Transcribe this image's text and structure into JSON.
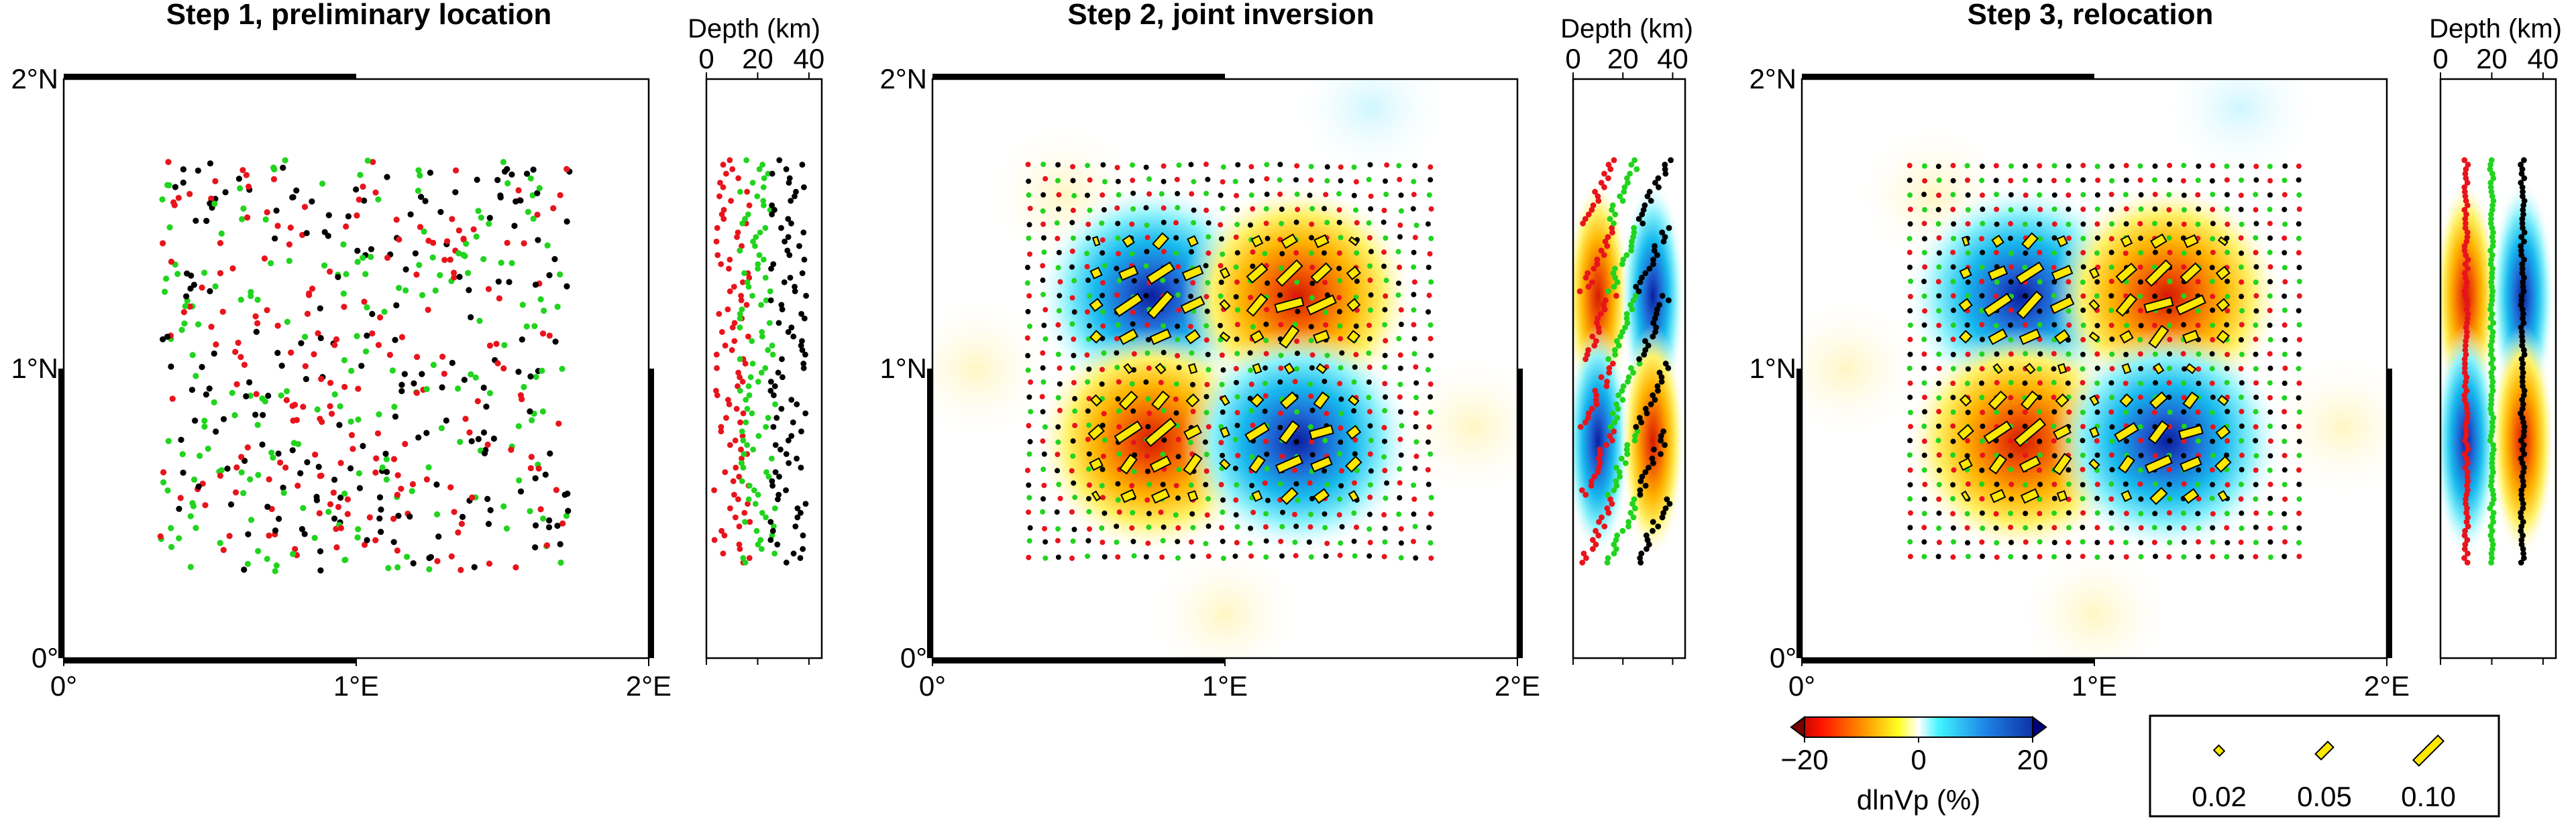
{
  "chart_data": [
    {
      "type": "scatter",
      "title": "Step 1, preliminary location",
      "map": {
        "x_ticks": [
          "0°",
          "1°E",
          "2°E"
        ],
        "y_ticks": [
          "0°",
          "1°N",
          "2°N"
        ],
        "xlim": [
          0,
          2
        ],
        "ylim": [
          0,
          2
        ],
        "point_colors": [
          "#e8141c",
          "#21d41e",
          "#000000"
        ],
        "event_extent": {
          "lon": [
            0.33,
            1.73
          ],
          "lat": [
            0.3,
            1.72
          ]
        },
        "pattern": "scattered (preliminary, perturbed locations)"
      },
      "depth_panel": {
        "title": "Depth (km)",
        "ticks": [
          "0",
          "20",
          "40"
        ],
        "xlim": [
          0,
          45
        ],
        "depth_groups_km": [
          {
            "color": "#e8141c",
            "depth": 10
          },
          {
            "color": "#21d41e",
            "depth": 20
          },
          {
            "color": "#000000",
            "depth": 32
          }
        ]
      }
    },
    {
      "type": "heatmap",
      "title": "Step 2, joint inversion",
      "map": {
        "x_ticks": [
          "0°",
          "1°E",
          "2°E"
        ],
        "y_ticks": [
          "0°",
          "1°N",
          "2°N"
        ],
        "xlim": [
          0,
          2
        ],
        "ylim": [
          0,
          2
        ],
        "anomalies_dlnVp_percent": [
          {
            "lon": 0.75,
            "lat": 1.25,
            "value": 20
          },
          {
            "lon": 1.25,
            "lat": 1.25,
            "value": -20
          },
          {
            "lon": 0.75,
            "lat": 0.75,
            "value": -20
          },
          {
            "lon": 1.25,
            "lat": 0.75,
            "value": 20
          }
        ],
        "event_grid": {
          "lon": [
            0.33,
            1.7
          ],
          "lat": [
            0.35,
            1.7
          ],
          "pattern": "regular grid, slightly perturbed"
        },
        "anisotropy_bars": "yellow bars with black outline inside anomaly regions"
      },
      "depth_panel": {
        "title": "Depth (km)",
        "ticks": [
          "0",
          "20",
          "40"
        ],
        "xlim": [
          0,
          45
        ],
        "depth_groups_km": [
          {
            "color": "#e8141c",
            "depth": 10
          },
          {
            "color": "#21d41e",
            "depth": 20
          },
          {
            "color": "#000000",
            "depth": 32
          }
        ]
      }
    },
    {
      "type": "heatmap",
      "title": "Step 3, relocation",
      "map": {
        "x_ticks": [
          "0°",
          "1°E",
          "2°E"
        ],
        "y_ticks": [
          "0°",
          "1°N",
          "2°N"
        ],
        "xlim": [
          0,
          2
        ],
        "ylim": [
          0,
          2
        ],
        "anomalies_dlnVp_percent": [
          {
            "lon": 0.75,
            "lat": 1.25,
            "value": 20
          },
          {
            "lon": 1.25,
            "lat": 1.25,
            "value": -20
          },
          {
            "lon": 0.75,
            "lat": 0.75,
            "value": -20
          },
          {
            "lon": 1.25,
            "lat": 0.75,
            "value": 20
          }
        ],
        "event_grid": {
          "lon": [
            0.37,
            1.7
          ],
          "lat": [
            0.35,
            1.7
          ],
          "pattern": "regular grid"
        },
        "anisotropy_bars": "yellow bars with black outline inside anomaly regions"
      },
      "depth_panel": {
        "title": "Depth (km)",
        "ticks": [
          "0",
          "20",
          "40"
        ],
        "xlim": [
          0,
          45
        ],
        "depth_groups_km": [
          {
            "color": "#e8141c",
            "depth": 10
          },
          {
            "color": "#21d41e",
            "depth": 20
          },
          {
            "color": "#000000",
            "depth": 32
          }
        ]
      }
    }
  ],
  "colorbar": {
    "label": "dlnVp (%)",
    "ticks": [
      "−20",
      "0",
      "20"
    ],
    "range": [
      -20,
      20
    ],
    "colors": [
      "#7a0000",
      "#ff0000",
      "#ff8c00",
      "#ffff00",
      "#ffffff",
      "#00ffff",
      "#1e6fd6",
      "#00008b"
    ]
  },
  "bar_legend": {
    "labels": [
      "0.02",
      "0.05",
      "0.10"
    ],
    "values": [
      0.02,
      0.05,
      0.1
    ]
  }
}
